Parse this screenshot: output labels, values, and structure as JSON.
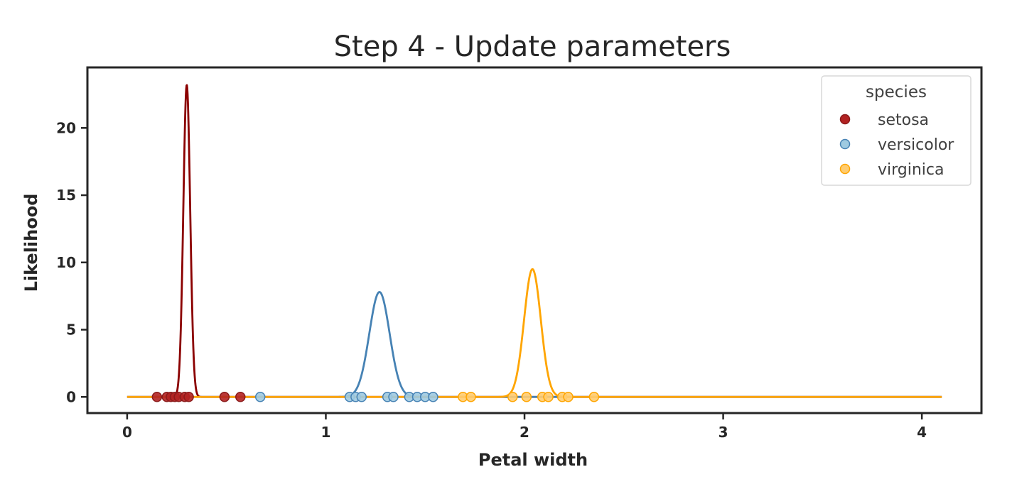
{
  "chart_data": {
    "type": "line",
    "title": "Step 4 - Update parameters",
    "xlabel": "Petal width",
    "ylabel": "Likelihood",
    "xlim": [
      -0.2,
      4.3
    ],
    "ylim": [
      -1.2,
      24.5
    ],
    "xticks": [
      0,
      1,
      2,
      3,
      4
    ],
    "yticks": [
      0,
      5,
      10,
      15,
      20
    ],
    "grid": false,
    "legend": {
      "title": "species",
      "position": "top-right"
    },
    "curve_x_range": [
      0,
      4.1
    ],
    "series": [
      {
        "name": "setosa",
        "color": "#8b0000",
        "marker_fill": "#b22222",
        "marker_edge": "#8b1a1a",
        "gaussian": {
          "mean": 0.3,
          "std": 0.0172,
          "peak": 23.2
        },
        "points": [
          0.15,
          0.2,
          0.22,
          0.24,
          0.26,
          0.29,
          0.31,
          0.49,
          0.57
        ]
      },
      {
        "name": "versicolor",
        "color": "#4682b4",
        "marker_fill": "#9ecae1",
        "marker_edge": "#4682b4",
        "gaussian": {
          "mean": 1.27,
          "std": 0.051,
          "peak": 7.8
        },
        "points": [
          0.67,
          1.12,
          1.15,
          1.18,
          1.31,
          1.34,
          1.42,
          1.46,
          1.5,
          1.54
        ]
      },
      {
        "name": "virginica",
        "color": "#ffa500",
        "marker_fill": "#ffcc70",
        "marker_edge": "#ffa500",
        "gaussian": {
          "mean": 2.04,
          "std": 0.042,
          "peak": 9.5
        },
        "points": [
          1.69,
          1.73,
          1.94,
          2.01,
          2.09,
          2.12,
          2.19,
          2.22,
          2.35
        ]
      }
    ]
  }
}
